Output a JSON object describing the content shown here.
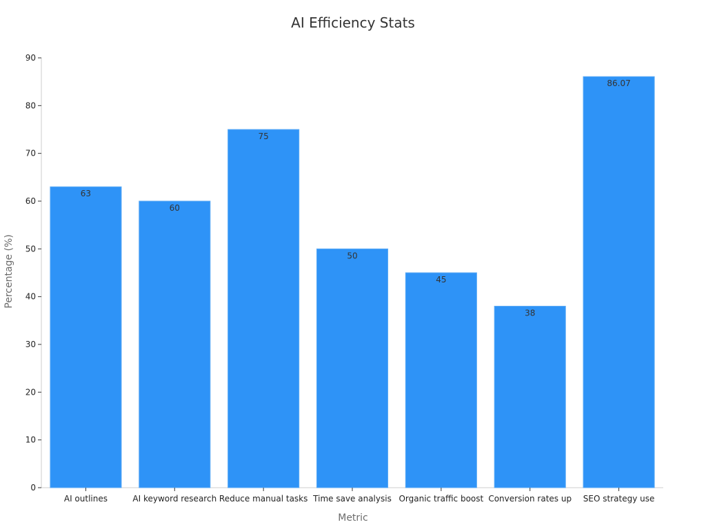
{
  "colors": {
    "bar": "#2e93f7",
    "bar_stroke": "#5aaaf5",
    "axis": "#cccccc",
    "tick": "#333333"
  },
  "chart_data": {
    "type": "bar",
    "title": "AI Efficiency Stats",
    "xlabel": "Metric",
    "ylabel": "Percentage (%)",
    "categories": [
      "AI outlines",
      "AI keyword research",
      "Reduce manual tasks",
      "Time save analysis",
      "Organic traffic boost",
      "Conversion rates up",
      "SEO strategy use"
    ],
    "values": [
      63,
      60,
      75,
      50,
      45,
      38,
      86.07
    ],
    "data_labels": [
      "63",
      "60",
      "75",
      "50",
      "45",
      "38",
      "86.07"
    ],
    "ylim": [
      0,
      90
    ],
    "yticks": [
      0,
      10,
      20,
      30,
      40,
      50,
      60,
      70,
      80,
      90
    ],
    "ytick_labels": [
      "0",
      "10",
      "20",
      "30",
      "40",
      "50",
      "60",
      "70",
      "80",
      "90"
    ],
    "grid": false,
    "legend": "none"
  }
}
